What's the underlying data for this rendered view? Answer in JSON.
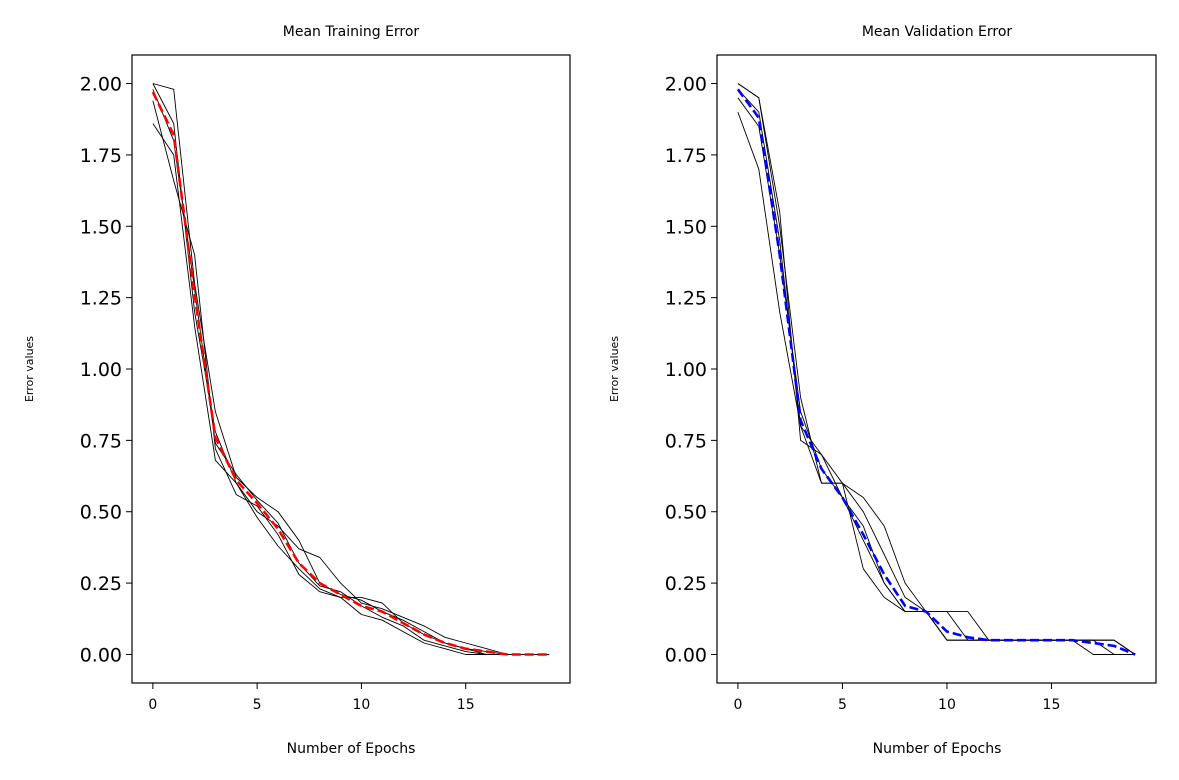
{
  "chart_data": [
    {
      "type": "line",
      "title": "Mean Training Error",
      "xlabel": "Number of Epochs",
      "ylabel": "Error values",
      "xlim": [
        -1,
        20
      ],
      "ylim": [
        -0.1,
        2.1
      ],
      "xticks": [
        0,
        5,
        10,
        15
      ],
      "yticks": [
        0.0,
        0.25,
        0.5,
        0.75,
        1.0,
        1.25,
        1.5,
        1.75,
        2.0
      ],
      "xtick_labels": [
        "0",
        "5",
        "10",
        "15"
      ],
      "ytick_labels": [
        "0.00",
        "0.25",
        "0.50",
        "0.75",
        "1.00",
        "1.25",
        "1.50",
        "1.75",
        "2.00"
      ],
      "grid": false,
      "x": [
        0,
        1,
        2,
        3,
        4,
        5,
        6,
        7,
        8,
        9,
        10,
        11,
        12,
        13,
        14,
        15,
        16,
        17,
        18,
        19
      ],
      "series": [
        {
          "style": "solid-thin",
          "color": "#000000",
          "values": [
            2.0,
            1.98,
            1.3,
            0.85,
            0.62,
            0.55,
            0.5,
            0.4,
            0.25,
            0.21,
            0.19,
            0.15,
            0.12,
            0.08,
            0.04,
            0.02,
            0.01,
            0.0,
            0.0,
            0.0
          ]
        },
        {
          "style": "solid-thin",
          "color": "#000000",
          "values": [
            1.86,
            1.75,
            1.15,
            0.68,
            0.6,
            0.5,
            0.45,
            0.37,
            0.34,
            0.25,
            0.18,
            0.16,
            0.13,
            0.1,
            0.06,
            0.04,
            0.02,
            0.0,
            0.0,
            0.0
          ]
        },
        {
          "style": "solid-thin",
          "color": "#000000",
          "values": [
            1.94,
            1.66,
            1.4,
            0.72,
            0.56,
            0.52,
            0.42,
            0.28,
            0.22,
            0.2,
            0.14,
            0.12,
            0.08,
            0.04,
            0.02,
            0.0,
            0.0,
            0.0,
            0.0,
            0.0
          ]
        },
        {
          "style": "solid-thin",
          "color": "#000000",
          "values": [
            2.0,
            1.86,
            1.2,
            0.78,
            0.6,
            0.48,
            0.38,
            0.3,
            0.23,
            0.2,
            0.2,
            0.18,
            0.11,
            0.07,
            0.04,
            0.02,
            0.0,
            0.0,
            0.0,
            0.0
          ]
        },
        {
          "style": "solid-thin",
          "color": "#000000",
          "values": [
            1.98,
            1.8,
            1.28,
            0.74,
            0.63,
            0.54,
            0.46,
            0.32,
            0.24,
            0.22,
            0.17,
            0.13,
            0.1,
            0.05,
            0.03,
            0.01,
            0.0,
            0.0,
            0.0,
            0.0
          ]
        },
        {
          "style": "dashed",
          "color": "#ff0000",
          "values": [
            1.97,
            1.82,
            1.26,
            0.76,
            0.61,
            0.53,
            0.44,
            0.32,
            0.25,
            0.21,
            0.17,
            0.15,
            0.11,
            0.07,
            0.04,
            0.02,
            0.01,
            0.0,
            0.0,
            0.0
          ]
        }
      ]
    },
    {
      "type": "line",
      "title": "Mean Validation Error",
      "xlabel": "Number of Epochs",
      "ylabel": "Error values",
      "xlim": [
        -1,
        20
      ],
      "ylim": [
        -0.1,
        2.1
      ],
      "xticks": [
        0,
        5,
        10,
        15
      ],
      "yticks": [
        0.0,
        0.25,
        0.5,
        0.75,
        1.0,
        1.25,
        1.5,
        1.75,
        2.0
      ],
      "xtick_labels": [
        "0",
        "5",
        "10",
        "15"
      ],
      "ytick_labels": [
        "0.00",
        "0.25",
        "0.50",
        "0.75",
        "1.00",
        "1.25",
        "1.50",
        "1.75",
        "2.00"
      ],
      "grid": false,
      "x": [
        0,
        1,
        2,
        3,
        4,
        5,
        6,
        7,
        8,
        9,
        10,
        11,
        12,
        13,
        14,
        15,
        16,
        17,
        18,
        19
      ],
      "series": [
        {
          "style": "solid-thin",
          "color": "#000000",
          "values": [
            2.0,
            1.95,
            1.55,
            0.75,
            0.7,
            0.6,
            0.55,
            0.45,
            0.25,
            0.15,
            0.15,
            0.15,
            0.05,
            0.05,
            0.05,
            0.05,
            0.05,
            0.05,
            0.05,
            0.0
          ]
        },
        {
          "style": "solid-thin",
          "color": "#000000",
          "values": [
            1.9,
            1.7,
            1.2,
            0.8,
            0.6,
            0.6,
            0.3,
            0.2,
            0.15,
            0.15,
            0.05,
            0.05,
            0.05,
            0.05,
            0.05,
            0.05,
            0.05,
            0.0,
            0.0,
            0.0
          ]
        },
        {
          "style": "solid-thin",
          "color": "#000000",
          "values": [
            1.95,
            1.85,
            1.4,
            0.85,
            0.65,
            0.55,
            0.45,
            0.25,
            0.15,
            0.15,
            0.15,
            0.05,
            0.05,
            0.05,
            0.05,
            0.05,
            0.05,
            0.05,
            0.0,
            0.0
          ]
        },
        {
          "style": "solid-thin",
          "color": "#000000",
          "values": [
            2.0,
            1.95,
            1.5,
            0.9,
            0.6,
            0.6,
            0.5,
            0.35,
            0.2,
            0.15,
            0.05,
            0.05,
            0.05,
            0.05,
            0.05,
            0.05,
            0.05,
            0.05,
            0.05,
            0.0
          ]
        },
        {
          "style": "solid-thin",
          "color": "#000000",
          "values": [
            1.98,
            1.9,
            1.45,
            0.8,
            0.7,
            0.55,
            0.4,
            0.25,
            0.15,
            0.15,
            0.05,
            0.05,
            0.05,
            0.05,
            0.05,
            0.05,
            0.05,
            0.05,
            0.05,
            0.0
          ]
        },
        {
          "style": "dashed",
          "color": "#0000ff",
          "values": [
            1.98,
            1.88,
            1.4,
            0.82,
            0.65,
            0.55,
            0.42,
            0.28,
            0.17,
            0.15,
            0.08,
            0.06,
            0.05,
            0.05,
            0.05,
            0.05,
            0.05,
            0.04,
            0.03,
            0.0
          ]
        }
      ]
    }
  ]
}
